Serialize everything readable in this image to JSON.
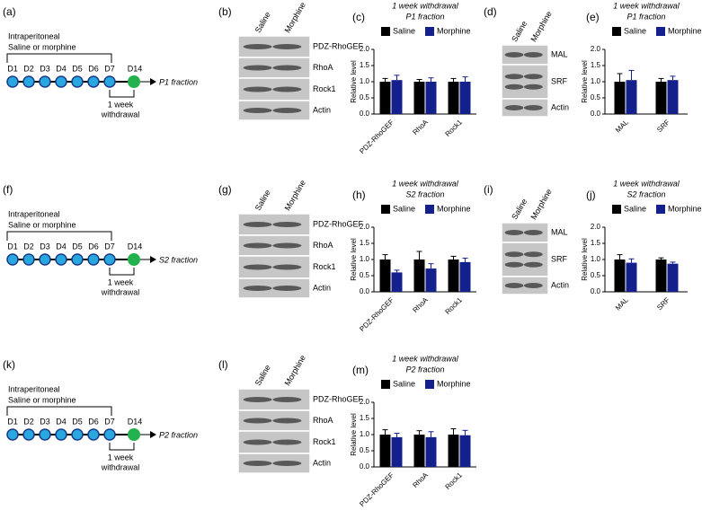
{
  "timelines": [
    {
      "label": "(a)",
      "protocol": [
        "Intraperitoneal",
        "Saline or morphine"
      ],
      "days": [
        "D1",
        "D2",
        "D3",
        "D4",
        "D5",
        "D6",
        "D7"
      ],
      "end_day": "D14",
      "withdrawal": [
        "1 week",
        "withdrawal"
      ],
      "fraction": "P1 fraction"
    },
    {
      "label": "(f)",
      "protocol": [
        "Intraperitoneal",
        "Saline or morphine"
      ],
      "days": [
        "D1",
        "D2",
        "D3",
        "D4",
        "D5",
        "D6",
        "D7"
      ],
      "end_day": "D14",
      "withdrawal": [
        "1 week",
        "withdrawal"
      ],
      "fraction": "S2 fraction"
    },
    {
      "label": "(k)",
      "protocol": [
        "Intraperitoneal",
        "Saline or morphine"
      ],
      "days": [
        "D1",
        "D2",
        "D3",
        "D4",
        "D5",
        "D6",
        "D7"
      ],
      "end_day": "D14",
      "withdrawal": [
        "1 week",
        "withdrawal"
      ],
      "fraction": "P2 fraction"
    }
  ],
  "blots": [
    {
      "label": "(b)",
      "lanes": [
        "Saline",
        "Morphine"
      ],
      "bands": [
        "PDZ-RhoGEF",
        "RhoA",
        "Rock1",
        "Actin"
      ]
    },
    {
      "label": "(d)",
      "lanes": [
        "Saline",
        "Morphine"
      ],
      "bands": [
        "MAL",
        "SRF",
        "Actin"
      ]
    },
    {
      "label": "(g)",
      "lanes": [
        "Saline",
        "Morphine"
      ],
      "bands": [
        "PDZ-RhoGEF",
        "RhoA",
        "Rock1",
        "Actin"
      ]
    },
    {
      "label": "(i)",
      "lanes": [
        "Saline",
        "Morphine"
      ],
      "bands": [
        "MAL",
        "SRF",
        "Actin"
      ]
    },
    {
      "label": "(l)",
      "lanes": [
        "Saline",
        "Morphine"
      ],
      "bands": [
        "PDZ-RhoGEF",
        "RhoA",
        "Rock1",
        "Actin"
      ]
    }
  ],
  "chart_data": [
    {
      "type": "bar",
      "label": "(c)",
      "title": "1 week withdrawal",
      "subtitle": "P1 fraction",
      "ylabel": "Relative level",
      "categories": [
        "PDZ-RhoGEF",
        "RhoA",
        "Rock1"
      ],
      "series": [
        {
          "name": "Saline",
          "color": "#000000",
          "values": [
            1.0,
            1.0,
            1.0
          ],
          "errors": [
            0.1,
            0.07,
            0.1
          ]
        },
        {
          "name": "Morphine",
          "color": "#14208c",
          "values": [
            1.05,
            1.0,
            1.0
          ],
          "errors": [
            0.15,
            0.12,
            0.15
          ]
        }
      ],
      "ylim": [
        0,
        2
      ],
      "yticks": [
        {
          "value": 0,
          "label": "0.0"
        },
        0.5,
        {
          "value": 1,
          "label": "1.0"
        },
        1.5,
        {
          "value": 2,
          "label": "2.0"
        }
      ]
    },
    {
      "type": "bar",
      "label": "(e)",
      "title": "1 week withdrawal",
      "subtitle": "P1 fraction",
      "ylabel": "Relative level",
      "categories": [
        "MAL",
        "SRF"
      ],
      "series": [
        {
          "name": "Saline",
          "color": "#000000",
          "values": [
            1.0,
            1.0
          ],
          "errors": [
            0.25,
            0.1
          ]
        },
        {
          "name": "Morphine",
          "color": "#14208c",
          "values": [
            1.05,
            1.05
          ],
          "errors": [
            0.3,
            0.12
          ]
        }
      ],
      "ylim": [
        0,
        2
      ],
      "yticks": [
        {
          "value": 0,
          "label": "0.0"
        },
        0.5,
        {
          "value": 1,
          "label": "1.0"
        },
        1.5,
        {
          "value": 2,
          "label": "2.0"
        }
      ]
    },
    {
      "type": "bar",
      "label": "(h)",
      "title": "1 week withdrawal",
      "subtitle": "S2 fraction",
      "ylabel": "Relative level",
      "categories": [
        "PDZ-RhoGEF",
        "RhoA",
        "Rock1"
      ],
      "series": [
        {
          "name": "Saline",
          "color": "#000000",
          "values": [
            1.0,
            1.0,
            1.0
          ],
          "errors": [
            0.15,
            0.25,
            0.1
          ]
        },
        {
          "name": "Morphine",
          "color": "#14208c",
          "values": [
            0.6,
            0.72,
            0.92
          ],
          "errors": [
            0.07,
            0.15,
            0.12
          ]
        }
      ],
      "ylim": [
        0,
        2
      ],
      "yticks": [
        {
          "value": 0,
          "label": "0.0"
        },
        0.5,
        {
          "value": 1,
          "label": "1.0"
        },
        1.5,
        {
          "value": 2,
          "label": "2.0"
        }
      ]
    },
    {
      "type": "bar",
      "label": "(j)",
      "title": "1 week withdrawal",
      "subtitle": "S2 fraction",
      "ylabel": "Relative level",
      "categories": [
        "MAL",
        "SRF"
      ],
      "series": [
        {
          "name": "Saline",
          "color": "#000000",
          "values": [
            1.0,
            1.0
          ],
          "errors": [
            0.15,
            0.05
          ]
        },
        {
          "name": "Morphine",
          "color": "#14208c",
          "values": [
            0.9,
            0.87
          ],
          "errors": [
            0.12,
            0.05
          ]
        }
      ],
      "ylim": [
        0,
        2
      ],
      "yticks": [
        {
          "value": 0,
          "label": "0.0"
        },
        0.5,
        {
          "value": 1,
          "label": "1.0"
        },
        1.5,
        {
          "value": 2,
          "label": "2.0"
        }
      ]
    },
    {
      "type": "bar",
      "label": "(m)",
      "title": "1 week withdrawal",
      "subtitle": "P2 fraction",
      "ylabel": "Relative level",
      "categories": [
        "PDZ-RhoGEF",
        "RhoA",
        "Rock1"
      ],
      "series": [
        {
          "name": "Saline",
          "color": "#000000",
          "values": [
            1.0,
            1.0,
            1.0
          ],
          "errors": [
            0.15,
            0.12,
            0.18
          ]
        },
        {
          "name": "Morphine",
          "color": "#14208c",
          "values": [
            0.92,
            0.92,
            0.98
          ],
          "errors": [
            0.12,
            0.17,
            0.15
          ]
        }
      ],
      "ylim": [
        0,
        2
      ],
      "yticks": [
        {
          "value": 0,
          "label": "0.0"
        },
        0.5,
        {
          "value": 1,
          "label": "1.0"
        },
        1.5,
        {
          "value": 2,
          "label": "2.0"
        }
      ]
    }
  ]
}
